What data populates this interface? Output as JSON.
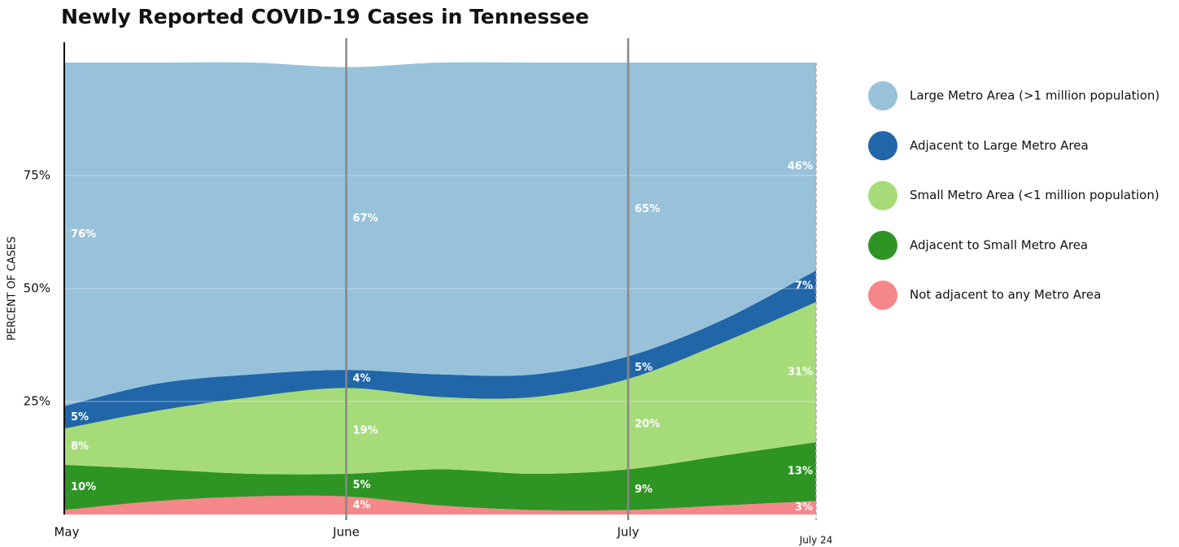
{
  "chart_data": {
    "type": "stacked-area",
    "title": "Newly Reported COVID-19 Cases in Tennessee",
    "y_label": "PERCENT OF CASES",
    "categories": [
      "May",
      null,
      null,
      "June",
      null,
      null,
      "July",
      null,
      "July 24"
    ],
    "ylim": [
      0,
      100
    ],
    "yticks": [
      {
        "value": 25,
        "label": "25%"
      },
      {
        "value": 50,
        "label": "50%"
      },
      {
        "value": 75,
        "label": "75%"
      }
    ],
    "grid": true,
    "series": [
      {
        "name": "Large Metro Area (>1 million population)",
        "color": "#98c1da",
        "values": [
          76,
          71,
          69,
          67,
          69,
          69,
          65,
          57,
          46
        ],
        "value_labels": [
          "76%",
          null,
          null,
          "67%",
          null,
          null,
          "65%",
          null,
          "46%"
        ]
      },
      {
        "name": "Adjacent to Large Metro Area",
        "color": "#2166a8",
        "values": [
          5,
          6,
          5,
          4,
          5,
          5,
          5,
          5,
          7
        ],
        "value_labels": [
          "5%",
          null,
          null,
          "4%",
          null,
          null,
          "5%",
          null,
          "7%"
        ]
      },
      {
        "name": "Small Metro Area (<1 million population)",
        "color": "#a6db7a",
        "values": [
          8,
          13,
          17,
          19,
          16,
          17,
          20,
          25,
          31
        ],
        "value_labels": [
          "8%",
          null,
          null,
          "19%",
          null,
          null,
          "20%",
          null,
          "31%"
        ]
      },
      {
        "name": "Adjacent to Small Metro Area",
        "color": "#2e9423",
        "values": [
          10,
          7,
          5,
          5,
          8,
          8,
          9,
          11,
          13
        ],
        "value_labels": [
          "10%",
          null,
          null,
          "5%",
          null,
          null,
          "9%",
          null,
          "13%"
        ]
      },
      {
        "name": "Not adjacent to any Metro Area",
        "color": "#f4888a",
        "values": [
          1,
          3,
          4,
          4,
          2,
          1,
          1,
          2,
          3
        ],
        "value_labels": [
          null,
          null,
          null,
          "4%",
          null,
          null,
          null,
          null,
          "3%"
        ]
      }
    ]
  }
}
